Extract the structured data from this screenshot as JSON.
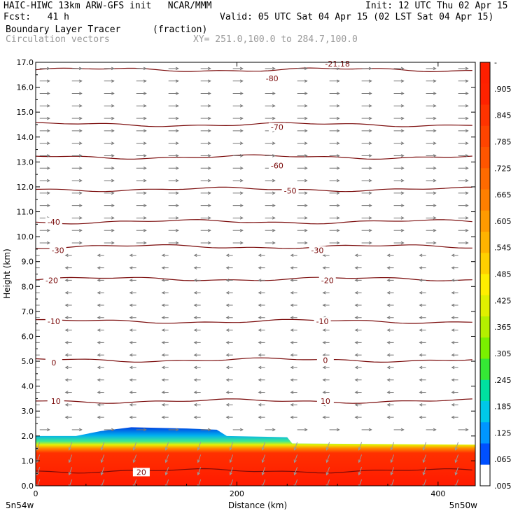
{
  "header": {
    "model": "HAIC-HIWC 13km ARW-GFS init   NCAR/MMM",
    "init": "Init: 12 UTC Thu 02 Apr 15",
    "fcst": "Fcst:   41 h",
    "valid": "Valid: 05 UTC Sat 04 Apr 15 (02 LST Sat 04 Apr 15)",
    "field": "Boundary Layer Tracer",
    "field_units": "(fraction)",
    "vectors": "Circulation vectors",
    "xy": "XY= 251.0,100.0 to 284.7,100.0"
  },
  "chart_data": {
    "type": "heatmap",
    "xlabel": "Distance (km)",
    "ylabel": "Height (km)",
    "xlim": [
      0,
      437
    ],
    "ylim": [
      0,
      17
    ],
    "x_ticks": [
      "0",
      "200",
      "400"
    ],
    "x_tick_values": [
      0,
      200,
      400
    ],
    "x_endpoints": {
      "left": "5n54w",
      "right": "5n50w"
    },
    "y_ticks": [
      "0.0",
      "1.0",
      "2.0",
      "3.0",
      "4.0",
      "5.0",
      "6.0",
      "7.0",
      "8.0",
      "9.0",
      "10.0",
      "11.0",
      "12.0",
      "13.0",
      "14.0",
      "15.0",
      "16.0",
      "17.0"
    ],
    "colorbar": {
      "labels": [
        "-",
        ".905",
        ".845",
        ".785",
        ".725",
        ".665",
        ".605",
        ".545",
        ".485",
        ".425",
        ".365",
        ".305",
        ".245",
        ".185",
        ".125",
        ".065",
        ".005"
      ],
      "colors": [
        "#ff1f00",
        "#ff2200",
        "#ff3300",
        "#ff4400",
        "#ff5500",
        "#ff6a00",
        "#ff7f00",
        "#ff9a00",
        "#ffb300",
        "#ffd000",
        "#ffee00",
        "#e0f000",
        "#b4f000",
        "#7af000",
        "#35e835",
        "#00e0a0",
        "#00c8e8",
        "#0096ff",
        "#0050ff",
        "#ffffff"
      ]
    },
    "boundary_layer_top_km": [
      {
        "x": 0,
        "z": 2.0
      },
      {
        "x": 40,
        "z": 2.0
      },
      {
        "x": 65,
        "z": 2.2
      },
      {
        "x": 95,
        "z": 2.35
      },
      {
        "x": 150,
        "z": 2.3
      },
      {
        "x": 180,
        "z": 2.25
      },
      {
        "x": 190,
        "z": 2.0
      },
      {
        "x": 250,
        "z": 1.95
      },
      {
        "x": 255,
        "z": 1.7
      },
      {
        "x": 437,
        "z": 1.65
      }
    ],
    "isotherms_C": [
      {
        "label": "-80",
        "z": 16.7
      },
      {
        "label": "-70",
        "z": 14.5
      },
      {
        "label": "-60",
        "z": 13.2
      },
      {
        "label": "-50",
        "z": 11.9
      },
      {
        "label": "-40",
        "z": 10.6
      },
      {
        "label": "-30",
        "z": 9.6
      },
      {
        "label": "-20",
        "z": 8.3
      },
      {
        "label": "-10",
        "z": 6.6
      },
      {
        "label": "0",
        "z": 5.05
      },
      {
        "label": "10",
        "z": 3.4
      },
      {
        "label": "20",
        "z": 0.6
      }
    ],
    "isotherm_labels": [
      {
        "text": "-80",
        "x": 235,
        "z": 16.35
      },
      {
        "text": "-70",
        "x": 240,
        "z": 14.4
      },
      {
        "text": "-60",
        "x": 240,
        "z": 12.85
      },
      {
        "text": "-50",
        "x": 253,
        "z": 11.85
      },
      {
        "text": "-40",
        "x": 18,
        "z": 10.6
      },
      {
        "text": "-30",
        "x": 22,
        "z": 9.45
      },
      {
        "text": "-30",
        "x": 280,
        "z": 9.45
      },
      {
        "text": "-20",
        "x": 16,
        "z": 8.25
      },
      {
        "text": "-20",
        "x": 290,
        "z": 8.25
      },
      {
        "text": "-10",
        "x": 18,
        "z": 6.6
      },
      {
        "text": "-10",
        "x": 285,
        "z": 6.6
      },
      {
        "text": "0",
        "x": 18,
        "z": 4.95
      },
      {
        "text": "0",
        "x": 288,
        "z": 5.05
      },
      {
        "text": "10",
        "x": 20,
        "z": 3.4
      },
      {
        "text": "10",
        "x": 288,
        "z": 3.4
      },
      {
        "text": "20",
        "x": 105,
        "z": 0.55
      },
      {
        "text": "-21.18",
        "x": 300,
        "z": 16.95
      }
    ],
    "vector_regions": [
      {
        "z_from": 9.5,
        "z_to": 17.0,
        "direction": "east"
      },
      {
        "z_from": 2.5,
        "z_to": 9.5,
        "direction": "west"
      },
      {
        "z_from": 0.0,
        "z_to": 2.0,
        "direction": "south-west"
      }
    ]
  }
}
